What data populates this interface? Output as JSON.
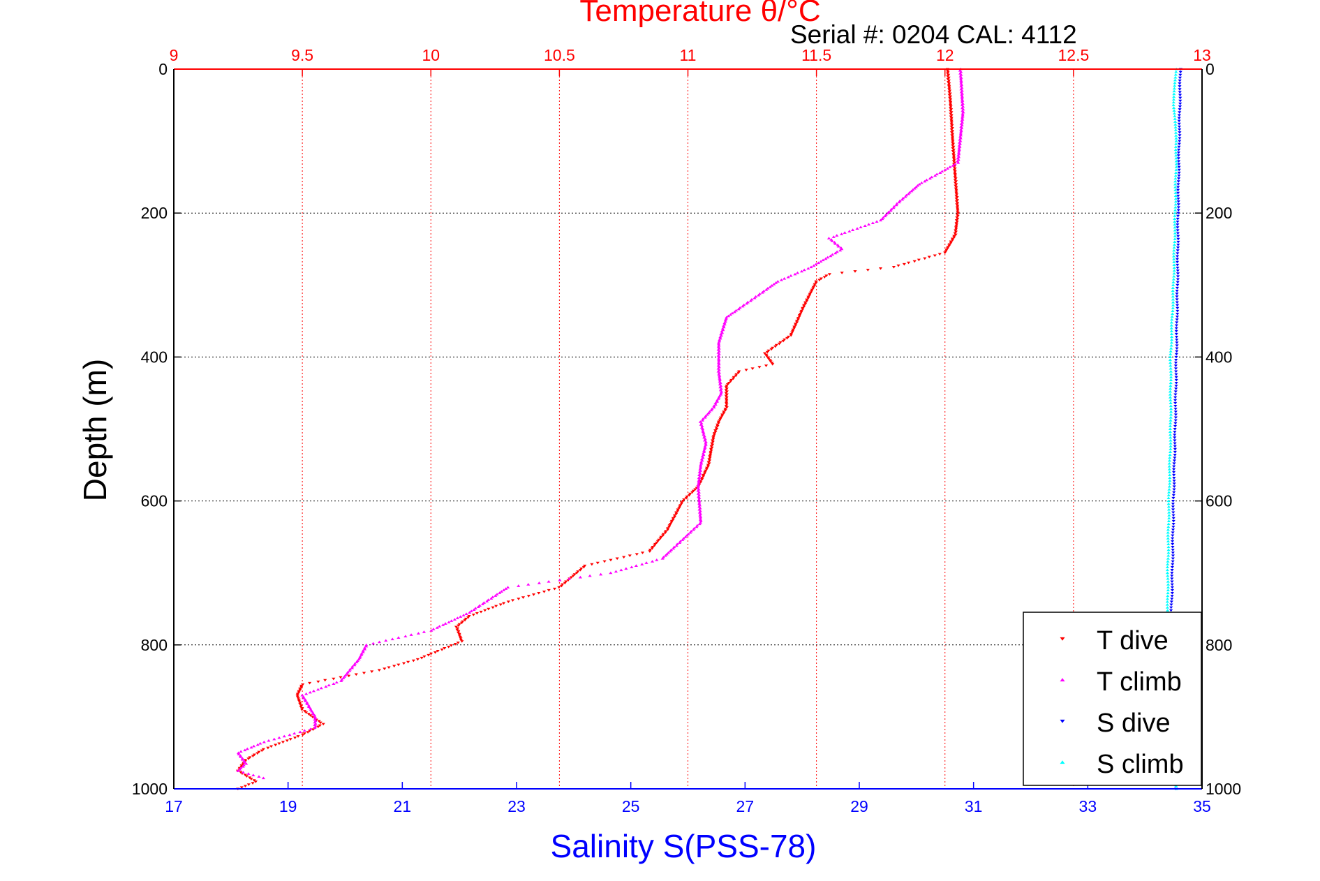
{
  "chart_data": {
    "type": "scatter",
    "title": "Temperature θ/°C",
    "subtitle": "Serial #: 0204  CAL: 4112",
    "ylabel": "Depth (m)",
    "xlabel": "Salinity S(PSS-78)",
    "x_top_axis": {
      "label": "Temperature θ/°C",
      "range": [
        9,
        13
      ],
      "ticks": [
        "9",
        "9.5",
        "10",
        "10.5",
        "11",
        "11.5",
        "12",
        "12.5",
        "13"
      ],
      "color": "#ff0000"
    },
    "x_bottom_axis": {
      "label": "Salinity S(PSS-78)",
      "range": [
        17,
        35
      ],
      "ticks": [
        "17",
        "19",
        "21",
        "23",
        "25",
        "27",
        "29",
        "31",
        "33",
        "35"
      ],
      "color": "#0000ff"
    },
    "y_axis": {
      "label": "Depth (m)",
      "range": [
        0,
        1000
      ],
      "reversed": true,
      "ticks": [
        "0",
        "200",
        "400",
        "600",
        "800",
        "1000"
      ]
    },
    "grid": true,
    "legend_position": "bottom-right",
    "series": [
      {
        "name": "T dive",
        "axis": "top",
        "color": "#ff0000",
        "marker": "triangle-down",
        "points": [
          [
            12.01,
            0
          ],
          [
            12.02,
            40
          ],
          [
            12.03,
            100
          ],
          [
            12.04,
            150
          ],
          [
            12.05,
            200
          ],
          [
            12.04,
            230
          ],
          [
            12.0,
            255
          ],
          [
            11.8,
            275
          ],
          [
            11.55,
            285
          ],
          [
            11.5,
            295
          ],
          [
            11.45,
            330
          ],
          [
            11.4,
            370
          ],
          [
            11.3,
            395
          ],
          [
            11.33,
            410
          ],
          [
            11.2,
            420
          ],
          [
            11.15,
            440
          ],
          [
            11.15,
            470
          ],
          [
            11.12,
            490
          ],
          [
            11.1,
            510
          ],
          [
            11.08,
            550
          ],
          [
            11.04,
            580
          ],
          [
            10.98,
            600
          ],
          [
            10.92,
            640
          ],
          [
            10.85,
            670
          ],
          [
            10.6,
            690
          ],
          [
            10.5,
            720
          ],
          [
            10.3,
            740
          ],
          [
            10.15,
            760
          ],
          [
            10.1,
            775
          ],
          [
            10.12,
            795
          ],
          [
            9.95,
            820
          ],
          [
            9.8,
            835
          ],
          [
            9.65,
            845
          ],
          [
            9.5,
            855
          ],
          [
            9.48,
            870
          ],
          [
            9.5,
            890
          ],
          [
            9.58,
            910
          ],
          [
            9.5,
            925
          ],
          [
            9.35,
            945
          ],
          [
            9.28,
            960
          ],
          [
            9.25,
            975
          ],
          [
            9.32,
            990
          ],
          [
            9.25,
            1000
          ]
        ]
      },
      {
        "name": "T climb",
        "axis": "top",
        "color": "#ff00ff",
        "marker": "triangle-up",
        "points": [
          [
            12.06,
            0
          ],
          [
            12.07,
            60
          ],
          [
            12.05,
            130
          ],
          [
            11.9,
            160
          ],
          [
            11.82,
            185
          ],
          [
            11.75,
            210
          ],
          [
            11.55,
            235
          ],
          [
            11.6,
            250
          ],
          [
            11.48,
            275
          ],
          [
            11.35,
            295
          ],
          [
            11.25,
            320
          ],
          [
            11.15,
            345
          ],
          [
            11.12,
            380
          ],
          [
            11.12,
            420
          ],
          [
            11.13,
            450
          ],
          [
            11.1,
            470
          ],
          [
            11.05,
            490
          ],
          [
            11.07,
            520
          ],
          [
            11.05,
            550
          ],
          [
            11.04,
            580
          ],
          [
            11.05,
            630
          ],
          [
            10.9,
            680
          ],
          [
            10.7,
            700
          ],
          [
            10.3,
            720
          ],
          [
            10.15,
            755
          ],
          [
            10.0,
            780
          ],
          [
            9.75,
            800
          ],
          [
            9.72,
            820
          ],
          [
            9.65,
            850
          ],
          [
            9.5,
            870
          ],
          [
            9.55,
            900
          ],
          [
            9.55,
            915
          ],
          [
            9.35,
            935
          ],
          [
            9.25,
            950
          ],
          [
            9.28,
            965
          ],
          [
            9.25,
            975
          ],
          [
            9.35,
            985
          ]
        ]
      },
      {
        "name": "S dive",
        "axis": "bottom",
        "color": "#0000ff",
        "marker": "triangle-down",
        "points": [
          [
            34.62,
            0
          ],
          [
            34.6,
            100
          ],
          [
            34.58,
            200
          ],
          [
            34.57,
            300
          ],
          [
            34.55,
            400
          ],
          [
            34.53,
            500
          ],
          [
            34.5,
            600
          ],
          [
            34.48,
            700
          ],
          [
            34.45,
            800
          ],
          [
            34.47,
            900
          ],
          [
            34.55,
            1000
          ]
        ]
      },
      {
        "name": "S climb",
        "axis": "bottom",
        "color": "#00ffff",
        "marker": "triangle-up",
        "points": [
          [
            34.55,
            0
          ],
          [
            34.5,
            50
          ],
          [
            34.55,
            100
          ],
          [
            34.53,
            200
          ],
          [
            34.5,
            300
          ],
          [
            34.45,
            400
          ],
          [
            34.45,
            500
          ],
          [
            34.42,
            600
          ],
          [
            34.4,
            700
          ],
          [
            34.4,
            800
          ],
          [
            34.45,
            900
          ],
          [
            34.55,
            1000
          ]
        ]
      }
    ],
    "legend": [
      "T dive",
      "T climb",
      "S dive",
      "S climb"
    ],
    "colors": {
      "temperature_axis": "#ff0000",
      "salinity_axis": "#0000ff",
      "grid_temperature": "#ff0000",
      "grid_depth": "#000000"
    }
  }
}
